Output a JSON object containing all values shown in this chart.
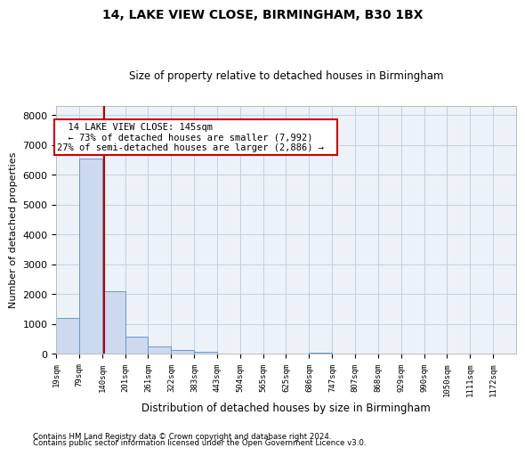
{
  "title1": "14, LAKE VIEW CLOSE, BIRMINGHAM, B30 1BX",
  "title2": "Size of property relative to detached houses in Birmingham",
  "xlabel": "Distribution of detached houses by size in Birmingham",
  "ylabel": "Number of detached properties",
  "footnote1": "Contains HM Land Registry data © Crown copyright and database right 2024.",
  "footnote2": "Contains public sector information licensed under the Open Government Licence v3.0.",
  "annotation_title": "14 LAKE VIEW CLOSE: 145sqm",
  "annotation_line1": "← 73% of detached houses are smaller (7,992)",
  "annotation_line2": "27% of semi-detached houses are larger (2,886) →",
  "bar_edges": [
    19,
    79,
    140,
    201,
    261,
    322,
    383,
    443,
    504,
    565,
    625,
    686,
    747,
    807,
    868,
    929,
    990,
    1050,
    1111,
    1172,
    1232
  ],
  "bar_heights": [
    1200,
    6550,
    2100,
    570,
    250,
    120,
    70,
    10,
    5,
    5,
    5,
    50,
    5,
    5,
    5,
    5,
    5,
    5,
    5,
    5
  ],
  "bar_color": "#ccd9ee",
  "bar_edge_color": "#6699cc",
  "vline_color": "#bb0000",
  "vline_x": 145,
  "annotation_box_color": "#cc0000",
  "grid_color": "#c0cfe0",
  "background_color": "#edf2f8",
  "ylim": [
    0,
    8300
  ],
  "yticks": [
    0,
    1000,
    2000,
    3000,
    4000,
    5000,
    6000,
    7000,
    8000
  ]
}
